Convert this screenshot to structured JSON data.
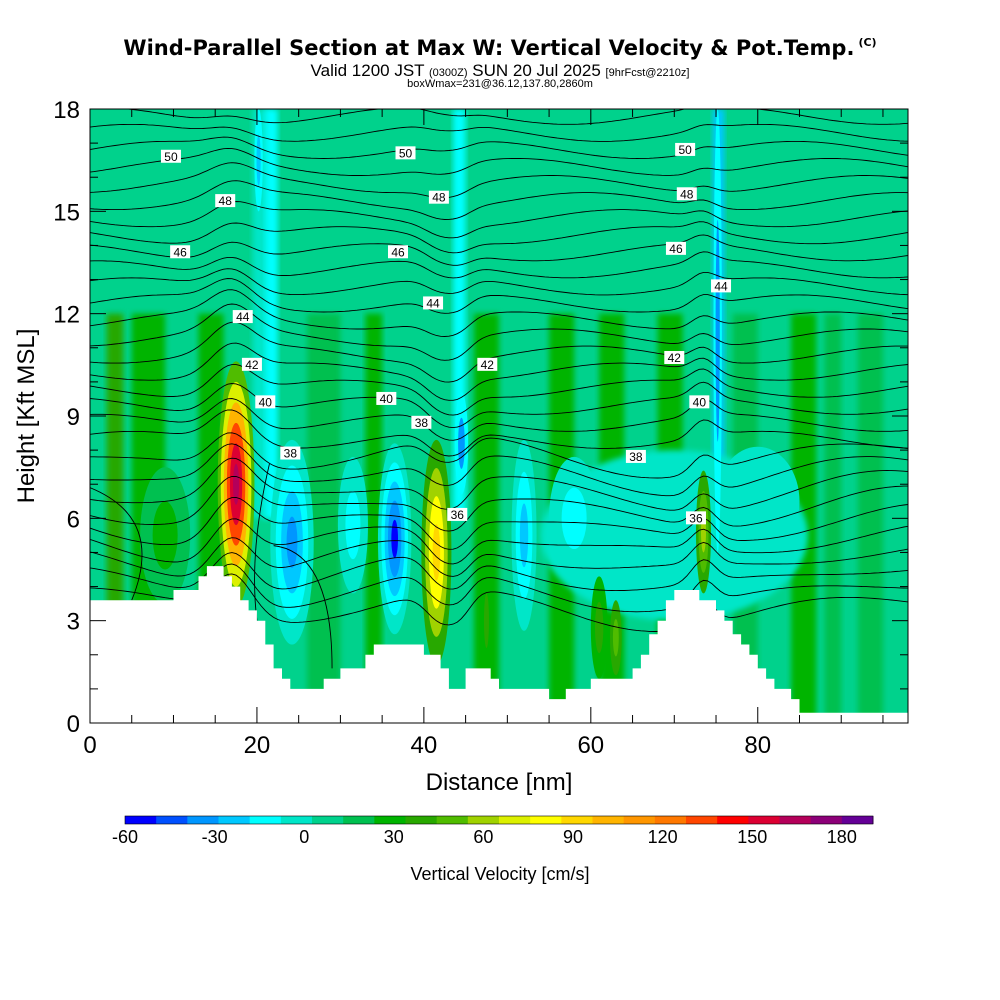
{
  "title": "Wind-Parallel Section at Max W: Vertical Velocity & Pot.Temp.",
  "copyright_mark": "(C)",
  "subtitle": {
    "valid_prefix": "Valid 1200 JST",
    "utc": "(0300Z)",
    "date": "SUN 20 Jul 2025",
    "fcst": "[9hrFcst@2210z]"
  },
  "box_info": "boxWmax=231@36.12,137.80,2860m",
  "chart_data": {
    "type": "heatmap",
    "xlabel": "Distance [nm]",
    "ylabel": "Height [Kft MSL]",
    "xlim": [
      0,
      98
    ],
    "ylim": [
      0,
      18
    ],
    "x_ticks": [
      0,
      20,
      40,
      60,
      80
    ],
    "y_ticks": [
      0,
      3,
      6,
      9,
      12,
      15,
      18
    ],
    "colorbar": {
      "label": "Vertical Velocity [cm/s]",
      "min": -60,
      "max": 180,
      "step": 10,
      "tick_values": [
        -60,
        -30,
        0,
        30,
        60,
        90,
        120,
        150,
        180
      ],
      "colors": [
        "#0000ff",
        "#0050ff",
        "#0096ff",
        "#00c8ff",
        "#00ffff",
        "#00e6c8",
        "#00d28c",
        "#00c050",
        "#00b400",
        "#28a800",
        "#50bc00",
        "#a0d200",
        "#dcf000",
        "#ffff00",
        "#ffd700",
        "#ffb400",
        "#ff9600",
        "#ff7800",
        "#ff4600",
        "#ff0000",
        "#dc0032",
        "#b4005a",
        "#8c0078",
        "#640096"
      ]
    },
    "theta_contours": [
      {
        "value": 36,
        "label": "36"
      },
      {
        "value": 38,
        "label": "38"
      },
      {
        "value": 40,
        "label": "40"
      },
      {
        "value": 42,
        "label": "42"
      },
      {
        "value": 44,
        "label": "44"
      },
      {
        "value": 46,
        "label": "46"
      },
      {
        "value": 48,
        "label": "48"
      },
      {
        "value": 50,
        "label": "50"
      }
    ],
    "updraft_cores": [
      {
        "x": 17.5,
        "height_kft": 7.5,
        "w_max": 150
      },
      {
        "x": 41.5,
        "height_kft": 5.5,
        "w_max": 80
      },
      {
        "x": 73.5,
        "height_kft": 6.2,
        "w_max": 50
      },
      {
        "x": 63.0,
        "height_kft": 2.5,
        "w_max": 40
      }
    ],
    "downdraft_cores": [
      {
        "x": 24.0,
        "height_kft": 5.5,
        "w_min": -40
      },
      {
        "x": 36.5,
        "height_kft": 5.5,
        "w_min": -50
      },
      {
        "x": 52.0,
        "height_kft": 5.5,
        "w_min": -30
      }
    ],
    "terrain_kft": [
      [
        0,
        3.6
      ],
      [
        4,
        3.6
      ],
      [
        10,
        3.6
      ],
      [
        10,
        3.9
      ],
      [
        13,
        3.9
      ],
      [
        13,
        4.3
      ],
      [
        14,
        4.3
      ],
      [
        14,
        4.6
      ],
      [
        16,
        4.6
      ],
      [
        16,
        4.3
      ],
      [
        17,
        4.3
      ],
      [
        17,
        4.0
      ],
      [
        18,
        4.0
      ],
      [
        18,
        3.6
      ],
      [
        19,
        3.6
      ],
      [
        19,
        3.3
      ],
      [
        20,
        3.3
      ],
      [
        20,
        3.0
      ],
      [
        21,
        3.0
      ],
      [
        21,
        2.3
      ],
      [
        22,
        2.3
      ],
      [
        22,
        1.6
      ],
      [
        23,
        1.6
      ],
      [
        23,
        1.3
      ],
      [
        24,
        1.3
      ],
      [
        24,
        1.0
      ],
      [
        28,
        1.0
      ],
      [
        28,
        1.3
      ],
      [
        30,
        1.3
      ],
      [
        30,
        1.6
      ],
      [
        33,
        1.6
      ],
      [
        33,
        2.0
      ],
      [
        34,
        2.0
      ],
      [
        34,
        2.3
      ],
      [
        40,
        2.3
      ],
      [
        40,
        2.0
      ],
      [
        42,
        2.0
      ],
      [
        42,
        1.6
      ],
      [
        43,
        1.6
      ],
      [
        43,
        1.0
      ],
      [
        45,
        1.0
      ],
      [
        45,
        1.6
      ],
      [
        48,
        1.6
      ],
      [
        48,
        1.3
      ],
      [
        49,
        1.3
      ],
      [
        49,
        1.0
      ],
      [
        55,
        1.0
      ],
      [
        55,
        0.7
      ],
      [
        57,
        0.7
      ],
      [
        57,
        1.0
      ],
      [
        60,
        1.0
      ],
      [
        60,
        1.3
      ],
      [
        65,
        1.3
      ],
      [
        65,
        1.6
      ],
      [
        66,
        1.6
      ],
      [
        66,
        2.0
      ],
      [
        67,
        2.0
      ],
      [
        67,
        2.6
      ],
      [
        68,
        2.6
      ],
      [
        68,
        3.0
      ],
      [
        69,
        3.0
      ],
      [
        69,
        3.6
      ],
      [
        70,
        3.6
      ],
      [
        70,
        3.9
      ],
      [
        73,
        3.9
      ],
      [
        73,
        3.6
      ],
      [
        75,
        3.6
      ],
      [
        75,
        3.3
      ],
      [
        76,
        3.3
      ],
      [
        76,
        3.0
      ],
      [
        77,
        3.0
      ],
      [
        77,
        2.6
      ],
      [
        78,
        2.6
      ],
      [
        78,
        2.3
      ],
      [
        79,
        2.3
      ],
      [
        79,
        2.0
      ],
      [
        80,
        2.0
      ],
      [
        80,
        1.6
      ],
      [
        81,
        1.6
      ],
      [
        81,
        1.3
      ],
      [
        82,
        1.3
      ],
      [
        82,
        1.0
      ],
      [
        84,
        1.0
      ],
      [
        84,
        0.7
      ],
      [
        85,
        0.7
      ],
      [
        85,
        0.3
      ],
      [
        98,
        0.3
      ]
    ]
  }
}
